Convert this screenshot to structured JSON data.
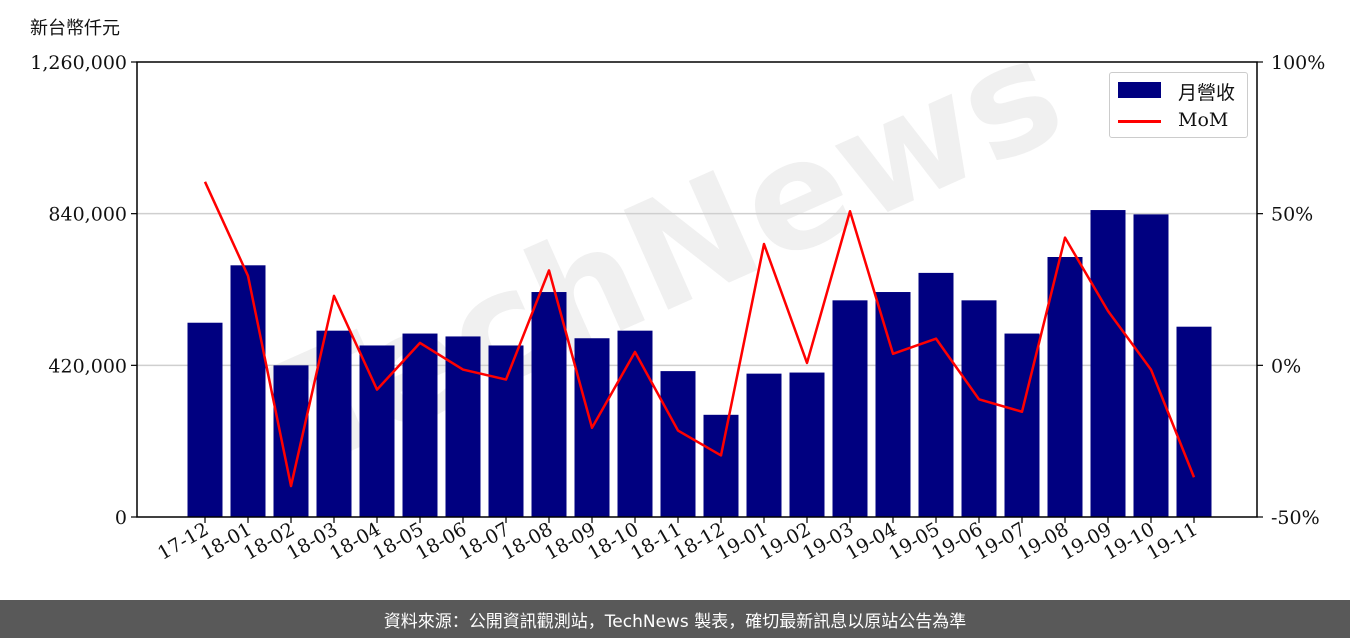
{
  "unit_label": "新台幣仟元",
  "watermark": "TechNews",
  "footer": "資料來源：公開資訊觀測站，TechNews 製表，確切最新訊息以原站公告為準",
  "colors": {
    "bar": "#000080",
    "line": "#ff0000",
    "footer_bg": "#595959"
  },
  "legend": {
    "bar": "月營收",
    "line": "MoM"
  },
  "chart_data": {
    "type": "bar",
    "categories": [
      "17-12",
      "18-01",
      "18-02",
      "18-03",
      "18-04",
      "18-05",
      "18-06",
      "18-07",
      "18-08",
      "18-09",
      "18-10",
      "18-11",
      "18-12",
      "19-01",
      "19-02",
      "19-03",
      "19-04",
      "19-05",
      "19-06",
      "19-07",
      "19-08",
      "19-09",
      "19-10",
      "19-11"
    ],
    "series": [
      {
        "name": "月營收",
        "type": "bar",
        "axis": "left",
        "values": [
          538000,
          697000,
          420000,
          516000,
          475000,
          508000,
          500000,
          475000,
          623000,
          495000,
          516000,
          404000,
          283000,
          397000,
          400000,
          600000,
          623000,
          676000,
          600000,
          508000,
          720000,
          850000,
          838000,
          527000
        ]
      },
      {
        "name": "MoM",
        "type": "line",
        "axis": "right",
        "values": [
          60.5,
          29.5,
          -39.8,
          22.9,
          -8.0,
          7.4,
          -1.4,
          -4.7,
          31.3,
          -20.6,
          4.4,
          -21.5,
          -29.7,
          40.0,
          0.8,
          50.8,
          3.8,
          8.8,
          -11.2,
          -15.3,
          42.1,
          17.9,
          -1.4,
          -36.9
        ]
      }
    ],
    "left_axis": {
      "ylim": [
        0,
        1260000
      ],
      "ticks": [
        "0",
        "420,000",
        "840,000",
        "1,260,000"
      ],
      "tick_values": [
        0,
        420000,
        840000,
        1260000
      ]
    },
    "right_axis": {
      "ylim": [
        -50,
        100
      ],
      "ticks": [
        "-50%",
        "0%",
        "50%",
        "100%"
      ],
      "tick_values": [
        -50,
        0,
        50,
        100
      ]
    },
    "grid": "horizontal",
    "legend_position": "top-right"
  }
}
